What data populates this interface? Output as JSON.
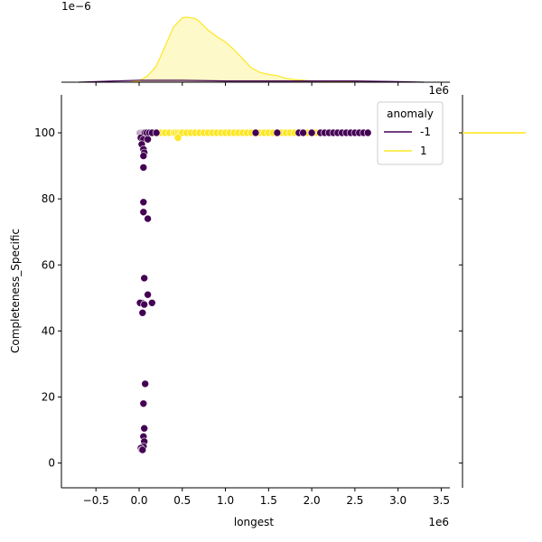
{
  "chart_data": {
    "type": "scatter",
    "title": "",
    "xlabel": "longest",
    "ylabel": "Completeness_Specific",
    "x_offset_label": "1e6",
    "y_offset_label": "",
    "marginal_x_offset_label": "1e−6",
    "marginal_y_offset_label": "1e6",
    "xlim": [
      -0.9,
      3.6
    ],
    "ylim": [
      -7.5,
      111.5
    ],
    "xticks": [
      -0.5,
      0.0,
      0.5,
      1.0,
      1.5,
      2.0,
      2.5,
      3.0,
      3.5
    ],
    "xtick_labels": [
      "−0.5",
      "0.0",
      "0.5",
      "1.0",
      "1.5",
      "2.0",
      "2.5",
      "3.0",
      "3.5"
    ],
    "yticks": [
      0,
      20,
      40,
      60,
      80,
      100
    ],
    "ytick_labels": [
      "0",
      "20",
      "40",
      "60",
      "80",
      "100"
    ],
    "grid": false,
    "legend": {
      "title": "anomaly",
      "placement": "top-right",
      "entries": [
        {
          "label": "-1",
          "color": "#440154"
        },
        {
          "label": "1",
          "color": "#fde725"
        }
      ]
    },
    "series": [
      {
        "name": "-1",
        "color": "#440154",
        "x": [
          0.01,
          0.02,
          0.03,
          0.04,
          0.05,
          0.06,
          0.07,
          0.09,
          0.12,
          0.15,
          0.2,
          0.02,
          0.05,
          0.1,
          0.03,
          0.05,
          0.06,
          0.05,
          0.05,
          0.05,
          0.05,
          0.1,
          0.06,
          0.03,
          0.01,
          0.1,
          0.06,
          0.15,
          0.04,
          0.07,
          0.05,
          0.06,
          0.05,
          0.06,
          0.05,
          0.02,
          0.03,
          0.04,
          1.35,
          1.6,
          1.85,
          1.9,
          2.0,
          2.1,
          2.15,
          2.2,
          2.25,
          2.3,
          2.35,
          2.4,
          2.45,
          2.5,
          2.55,
          2.6,
          2.65
        ],
        "y": [
          100,
          100,
          100,
          100,
          100,
          100,
          100,
          100,
          100,
          100,
          100,
          98.5,
          98,
          98,
          96.5,
          95,
          94,
          93,
          89.5,
          79,
          76,
          74,
          56,
          48.5,
          48.5,
          51,
          48,
          48.5,
          45.5,
          24,
          18,
          10.5,
          8,
          6.5,
          5,
          4.5,
          4,
          4,
          100,
          100,
          100,
          100,
          100,
          100,
          100,
          100,
          100,
          100,
          100,
          100,
          100,
          100,
          100,
          100,
          100
        ]
      },
      {
        "name": "1",
        "color": "#fde725",
        "x": [
          0.15,
          0.2,
          0.25,
          0.3,
          0.35,
          0.4,
          0.42,
          0.45,
          0.48,
          0.5,
          0.55,
          0.6,
          0.65,
          0.7,
          0.75,
          0.8,
          0.85,
          0.9,
          0.95,
          1.0,
          1.05,
          1.1,
          1.15,
          1.2,
          1.25,
          1.3,
          1.4,
          1.45,
          1.5,
          1.55,
          1.65,
          1.7,
          1.75,
          1.8,
          1.95,
          2.05,
          2.15,
          0.45
        ],
        "y": [
          100,
          100,
          100,
          100,
          100,
          100,
          100,
          100,
          100,
          100,
          100,
          100,
          100,
          100,
          100,
          100,
          100,
          100,
          100,
          100,
          100,
          100,
          100,
          100,
          100,
          100,
          100,
          100,
          100,
          100,
          100,
          100,
          100,
          100,
          100,
          100,
          100,
          98.5
        ]
      }
    ],
    "marginal_x_density": {
      "series": [
        {
          "name": "1",
          "color": "#fde725",
          "x": [
            -0.1,
            0.0,
            0.1,
            0.2,
            0.3,
            0.4,
            0.5,
            0.55,
            0.6,
            0.65,
            0.7,
            0.8,
            0.9,
            1.0,
            1.1,
            1.2,
            1.3,
            1.4,
            1.5,
            1.6,
            1.7,
            1.8,
            1.9,
            2.0,
            2.1,
            2.2,
            2.4,
            2.7
          ],
          "density": [
            0.0,
            0.02,
            0.1,
            0.25,
            0.55,
            0.85,
            0.99,
            1.0,
            0.99,
            0.98,
            0.93,
            0.8,
            0.7,
            0.62,
            0.5,
            0.36,
            0.22,
            0.15,
            0.12,
            0.1,
            0.06,
            0.04,
            0.03,
            0.02,
            0.02,
            0.01,
            0.005,
            0.0
          ]
        },
        {
          "name": "-1",
          "color": "#440154",
          "x": [
            -0.7,
            0.0,
            0.5,
            1.0,
            1.5,
            2.0,
            2.5,
            3.0,
            3.3
          ],
          "density": [
            0.0,
            0.03,
            0.03,
            0.02,
            0.02,
            0.02,
            0.02,
            0.01,
            0.0
          ]
        }
      ]
    },
    "marginal_y_density": {
      "series": [
        {
          "name": "1",
          "color": "#fde725",
          "y": [
            100
          ],
          "density_extent": 1.0
        }
      ]
    }
  }
}
